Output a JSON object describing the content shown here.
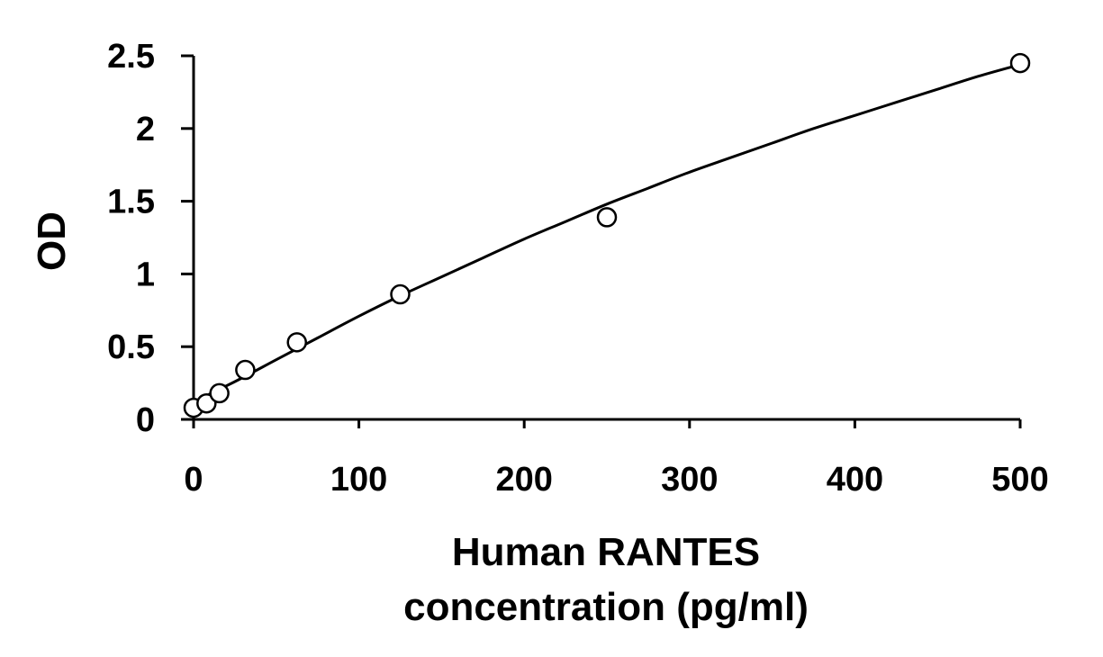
{
  "chart_data": {
    "type": "scatter",
    "title": "",
    "xlabel_lines": [
      "Human RANTES",
      "concentration (pg/ml)"
    ],
    "ylabel": "OD",
    "xlim": [
      0,
      500
    ],
    "ylim": [
      0,
      2.5
    ],
    "x_ticks": [
      0,
      100,
      200,
      300,
      400,
      500
    ],
    "x_tick_labels": [
      "0",
      "100",
      "200",
      "300",
      "400",
      "500"
    ],
    "y_ticks": [
      0,
      0.5,
      1,
      1.5,
      2,
      2.5
    ],
    "y_tick_labels": [
      "0",
      "0.5",
      "1",
      "1.5",
      "2",
      "2.5"
    ],
    "grid": false,
    "legend": "none",
    "series": [
      {
        "marker": "open-circle",
        "x": [
          0,
          7.8,
          15.6,
          31.25,
          62.5,
          125,
          250,
          500
        ],
        "y": [
          0.08,
          0.11,
          0.18,
          0.34,
          0.53,
          0.86,
          1.39,
          2.45
        ]
      }
    ],
    "fit_curve": {
      "x": [
        0,
        25,
        50,
        75,
        100,
        125,
        150,
        175,
        200,
        225,
        250,
        275,
        300,
        325,
        350,
        375,
        400,
        425,
        450,
        475,
        500
      ],
      "y": [
        0.12,
        0.26,
        0.41,
        0.56,
        0.71,
        0.85,
        0.98,
        1.11,
        1.24,
        1.36,
        1.48,
        1.59,
        1.7,
        1.8,
        1.9,
        2.0,
        2.09,
        2.18,
        2.27,
        2.36,
        2.44
      ]
    }
  }
}
